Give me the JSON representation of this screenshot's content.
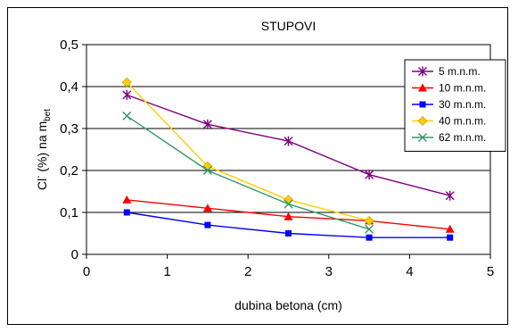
{
  "chart_data": {
    "type": "line",
    "title": "STUPOVI",
    "xlabel": "dubina betona (cm)",
    "ylabel": {
      "main": "Cl",
      "sup": "-",
      "mid": " (%) na m",
      "sub": "bet"
    },
    "xlim": [
      0,
      5
    ],
    "ylim": [
      0,
      0.5
    ],
    "x_ticks": [
      "0",
      "1",
      "2",
      "3",
      "4",
      "5"
    ],
    "y_ticks": [
      "0",
      "0,1",
      "0,2",
      "0,3",
      "0,4",
      "0,5"
    ],
    "grid": "horizontal",
    "legend_position": "top-right",
    "series": [
      {
        "name": "5 m.n.m.",
        "color": "#800080",
        "marker": "asterisk",
        "x": [
          0.5,
          1.5,
          2.5,
          3.5,
          4.5
        ],
        "y": [
          0.38,
          0.31,
          0.27,
          0.19,
          0.14
        ]
      },
      {
        "name": "10 m.n.m.",
        "color": "#ff0000",
        "marker": "triangle",
        "x": [
          0.5,
          1.5,
          2.5,
          3.5,
          4.5
        ],
        "y": [
          0.13,
          0.11,
          0.09,
          0.08,
          0.06
        ]
      },
      {
        "name": "30 m.n.m.",
        "color": "#0000ff",
        "marker": "square",
        "x": [
          0.5,
          1.5,
          2.5,
          3.5,
          4.5
        ],
        "y": [
          0.1,
          0.07,
          0.05,
          0.04,
          0.04
        ]
      },
      {
        "name": "40 m.n.m.",
        "color": "#ffcc00",
        "marker": "diamond",
        "x": [
          0.5,
          1.5,
          2.5,
          3.5
        ],
        "y": [
          0.41,
          0.21,
          0.13,
          0.08
        ]
      },
      {
        "name": "62 m.n.m.",
        "color": "#339966",
        "marker": "x",
        "x": [
          0.5,
          1.5,
          2.5,
          3.5
        ],
        "y": [
          0.33,
          0.2,
          0.12,
          0.06
        ]
      }
    ]
  }
}
